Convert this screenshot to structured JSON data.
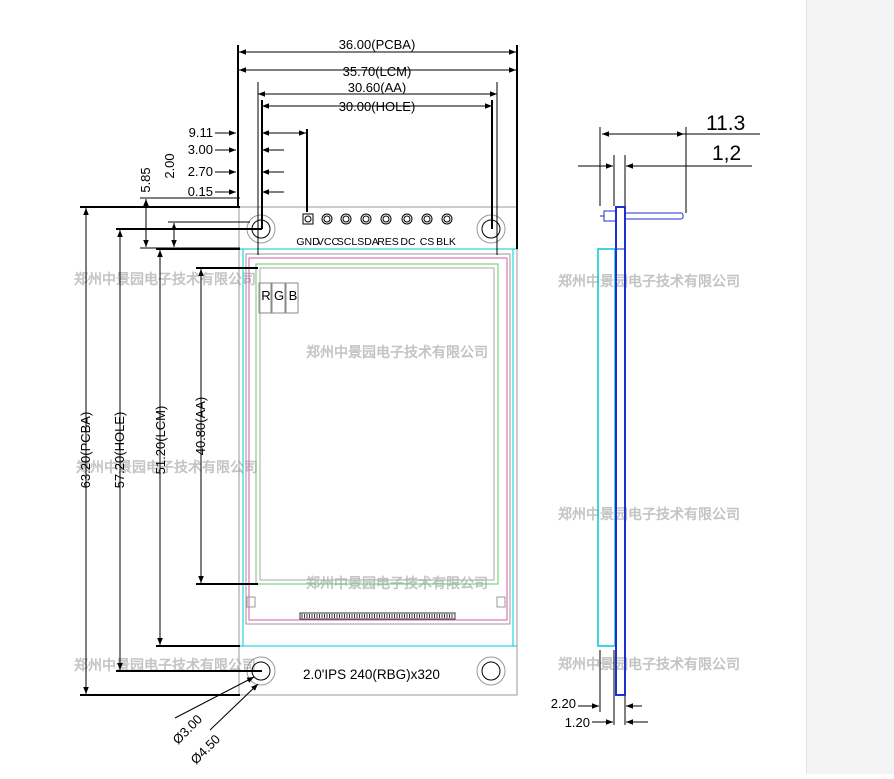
{
  "watermark": "郑州中景园电子技术有限公司",
  "front_view": {
    "width_dims": [
      "36.00(PCBA)",
      "35.70(LCM)",
      "30.60(AA)",
      "30.00(HOLE)"
    ],
    "top_dims": [
      "9.11",
      "3.00",
      "2.70",
      "0.15"
    ],
    "side_small_dims": [
      "5.85",
      "2.00"
    ],
    "height_dims": [
      "63.20(PCBA)",
      "57.20(HOLE)",
      "51.20(LCM)",
      "40.80(AA)"
    ],
    "pins": [
      "GND",
      "VCC",
      "SCL",
      "SDA",
      "RES",
      "DC",
      "CS",
      "BLK"
    ],
    "rgb": [
      "R",
      "G",
      "B"
    ],
    "model": "2.0'IPS 240(RBG)x320",
    "hole_dims": [
      "Ø3.00",
      "Ø4.50"
    ]
  },
  "side_view": {
    "top_dims": [
      "11.3",
      "1,2"
    ],
    "bottom_dims": [
      "2.20",
      "1.20"
    ]
  },
  "colors": {
    "cyan": "#00c8d6",
    "blue": "#1f2fd0",
    "magenta": "#d65aa8",
    "green": "#64c864",
    "watermark": "#c4c4c4"
  }
}
